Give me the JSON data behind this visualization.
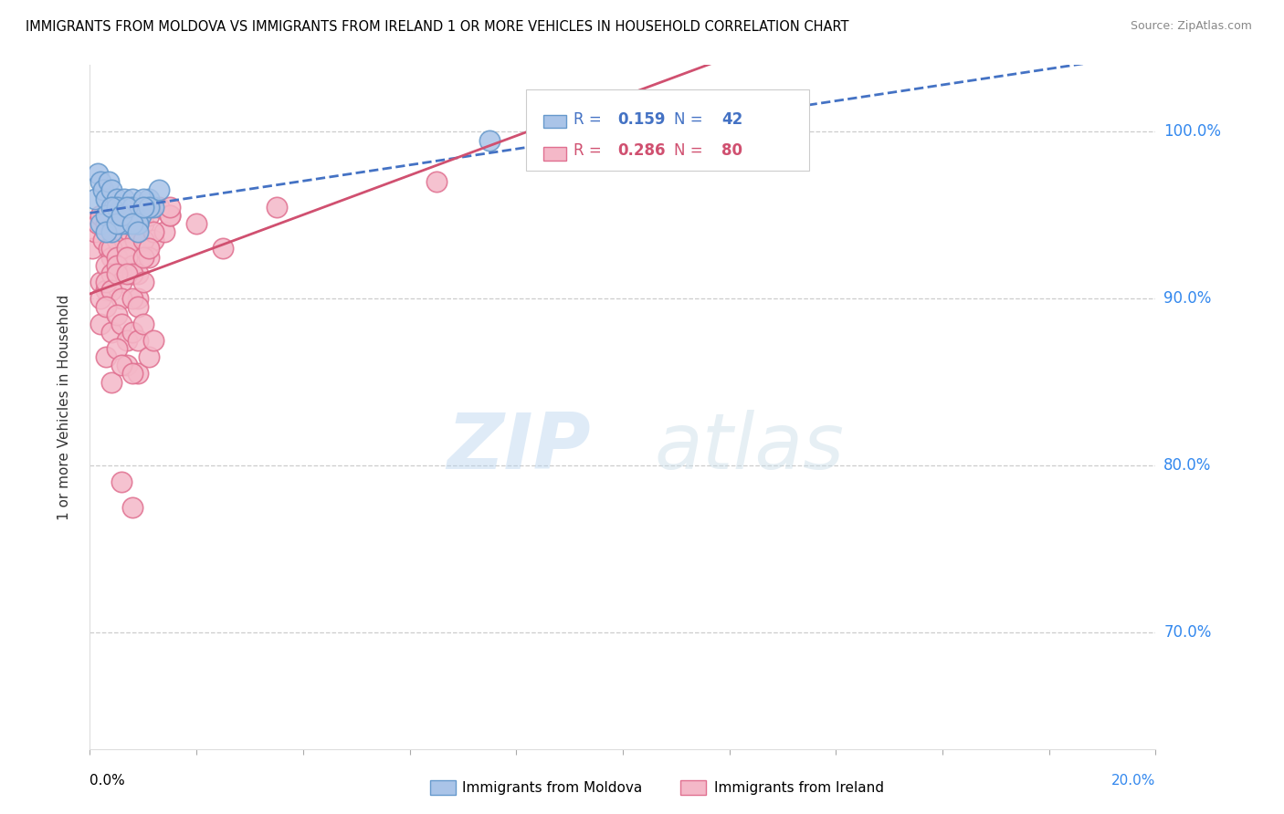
{
  "title": "IMMIGRANTS FROM MOLDOVA VS IMMIGRANTS FROM IRELAND 1 OR MORE VEHICLES IN HOUSEHOLD CORRELATION CHART",
  "source": "Source: ZipAtlas.com",
  "ylabel": "1 or more Vehicles in Household",
  "y_ticks": [
    70.0,
    80.0,
    90.0,
    100.0
  ],
  "y_tick_labels": [
    "70.0%",
    "80.0%",
    "90.0%",
    "100.0%"
  ],
  "xmin": 0.0,
  "xmax": 20.0,
  "ymin": 63.0,
  "ymax": 104.0,
  "r_moldova": 0.159,
  "n_moldova": 42,
  "r_ireland": 0.286,
  "n_ireland": 80,
  "color_moldova_fill": "#aac4e8",
  "color_moldova_edge": "#6699cc",
  "color_ireland_fill": "#f4b8c8",
  "color_ireland_edge": "#e07090",
  "color_moldova_line": "#4472c4",
  "color_ireland_line": "#d05070",
  "legend_label_moldova": "Immigrants from Moldova",
  "legend_label_ireland": "Immigrants from Ireland",
  "moldova_x": [
    0.1,
    0.15,
    0.2,
    0.25,
    0.3,
    0.35,
    0.4,
    0.45,
    0.5,
    0.55,
    0.6,
    0.65,
    0.7,
    0.75,
    0.8,
    0.85,
    0.9,
    0.95,
    1.0,
    1.1,
    1.2,
    1.3,
    0.2,
    0.3,
    0.4,
    0.5,
    0.6,
    0.7,
    0.8,
    0.9,
    1.0,
    1.1,
    0.3,
    0.4,
    0.5,
    0.6,
    0.7,
    0.8,
    0.9,
    1.0,
    7.5,
    11.5
  ],
  "moldova_y": [
    96.0,
    97.5,
    97.0,
    96.5,
    96.0,
    97.0,
    96.5,
    95.5,
    96.0,
    95.0,
    95.5,
    96.0,
    94.5,
    95.5,
    96.0,
    95.0,
    94.5,
    95.0,
    95.5,
    96.0,
    95.5,
    96.5,
    94.5,
    95.0,
    94.0,
    95.5,
    94.5,
    95.0,
    95.5,
    94.5,
    96.0,
    95.5,
    94.0,
    95.5,
    94.5,
    95.0,
    95.5,
    94.5,
    94.0,
    95.5,
    99.5,
    100.5
  ],
  "ireland_x": [
    0.05,
    0.1,
    0.15,
    0.2,
    0.25,
    0.3,
    0.35,
    0.4,
    0.45,
    0.5,
    0.55,
    0.6,
    0.65,
    0.7,
    0.75,
    0.8,
    0.85,
    0.9,
    0.95,
    1.0,
    1.1,
    1.2,
    1.3,
    1.4,
    1.5,
    0.2,
    0.3,
    0.4,
    0.5,
    0.6,
    0.7,
    0.8,
    0.9,
    1.0,
    1.1,
    1.2,
    0.3,
    0.4,
    0.5,
    0.6,
    0.7,
    0.8,
    0.9,
    1.0,
    1.1,
    0.2,
    0.3,
    0.4,
    0.5,
    0.6,
    0.7,
    0.8,
    0.9,
    1.0,
    0.2,
    0.3,
    0.4,
    0.5,
    0.6,
    0.7,
    0.8,
    0.9,
    1.0,
    1.5,
    2.0,
    2.5,
    3.5,
    0.3,
    0.5,
    0.7,
    0.9,
    1.1,
    0.4,
    0.6,
    0.8,
    1.2,
    6.5,
    1.5,
    0.6,
    0.8
  ],
  "ireland_y": [
    93.0,
    94.0,
    94.5,
    95.0,
    93.5,
    94.5,
    93.0,
    92.5,
    94.0,
    93.5,
    95.0,
    94.0,
    93.5,
    92.5,
    94.0,
    95.0,
    93.5,
    94.0,
    92.5,
    94.5,
    95.0,
    93.5,
    95.5,
    94.0,
    95.0,
    91.0,
    92.0,
    93.0,
    92.5,
    91.5,
    93.0,
    92.0,
    91.5,
    93.5,
    92.5,
    94.0,
    90.5,
    91.5,
    92.0,
    91.0,
    92.5,
    91.5,
    90.0,
    92.5,
    93.0,
    90.0,
    91.0,
    90.5,
    91.5,
    90.0,
    91.5,
    90.0,
    89.5,
    91.0,
    88.5,
    89.5,
    88.0,
    89.0,
    88.5,
    87.5,
    88.0,
    87.5,
    88.5,
    95.0,
    94.5,
    93.0,
    95.5,
    86.5,
    87.0,
    86.0,
    85.5,
    86.5,
    85.0,
    86.0,
    85.5,
    87.5,
    97.0,
    95.5,
    79.0,
    77.5
  ],
  "watermark_zip": "ZIP",
  "watermark_atlas": "atlas",
  "background_color": "#ffffff"
}
